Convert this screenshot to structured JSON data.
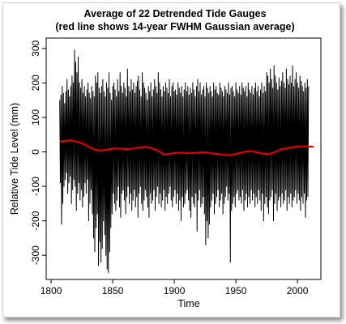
{
  "chart_data": {
    "type": "line",
    "title": "Average of 22 Detrended Tide Gauges",
    "subtitle": "(red line shows 14-year FWHM Gaussian average)",
    "xlabel": "Time",
    "ylabel": "Relative Tide Level (mm)",
    "xlim": [
      1796,
      2019
    ],
    "ylim": [
      -370,
      330
    ],
    "x_ticks": [
      1800,
      1850,
      1900,
      1950,
      2000
    ],
    "y_ticks": [
      -300,
      -200,
      -100,
      0,
      100,
      200,
      300
    ],
    "x_tick_labels": [
      "1800",
      "1850",
      "1900",
      "1950",
      "2000"
    ],
    "y_tick_labels": [
      "-300",
      "-200",
      "-100",
      "0",
      "100",
      "200",
      "300"
    ],
    "grid": false,
    "series": [
      {
        "color": "#000000",
        "note_points_are_yearly_extremes": true,
        "x": [
          1807,
          1808,
          1809,
          1810,
          1811,
          1812,
          1813,
          1814,
          1815,
          1816,
          1817,
          1818,
          1819,
          1820,
          1821,
          1822,
          1823,
          1824,
          1825,
          1826,
          1827,
          1828,
          1829,
          1830,
          1831,
          1832,
          1833,
          1834,
          1835,
          1836,
          1837,
          1838,
          1839,
          1840,
          1841,
          1842,
          1843,
          1844,
          1845,
          1846,
          1847,
          1848,
          1849,
          1850,
          1851,
          1852,
          1853,
          1854,
          1855,
          1856,
          1857,
          1858,
          1859,
          1860,
          1861,
          1862,
          1863,
          1864,
          1865,
          1866,
          1867,
          1868,
          1869,
          1870,
          1871,
          1872,
          1873,
          1874,
          1875,
          1876,
          1877,
          1878,
          1879,
          1880,
          1881,
          1882,
          1883,
          1884,
          1885,
          1886,
          1887,
          1888,
          1889,
          1890,
          1891,
          1892,
          1893,
          1894,
          1895,
          1896,
          1897,
          1898,
          1899,
          1900,
          1901,
          1902,
          1903,
          1904,
          1905,
          1906,
          1907,
          1908,
          1909,
          1910,
          1911,
          1912,
          1913,
          1914,
          1915,
          1916,
          1917,
          1918,
          1919,
          1920,
          1921,
          1922,
          1923,
          1924,
          1925,
          1926,
          1927,
          1928,
          1929,
          1930,
          1931,
          1932,
          1933,
          1934,
          1935,
          1936,
          1937,
          1938,
          1939,
          1940,
          1941,
          1942,
          1943,
          1944,
          1945,
          1946,
          1947,
          1948,
          1949,
          1950,
          1951,
          1952,
          1953,
          1954,
          1955,
          1956,
          1957,
          1958,
          1959,
          1960,
          1961,
          1962,
          1963,
          1964,
          1965,
          1966,
          1967,
          1968,
          1969,
          1970,
          1971,
          1972,
          1973,
          1974,
          1975,
          1976,
          1977,
          1978,
          1979,
          1980,
          1981,
          1982,
          1983,
          1984,
          1985,
          1986,
          1987,
          1988,
          1989,
          1990,
          1991,
          1992,
          1993,
          1994,
          1995,
          1996,
          1997,
          1998,
          1999,
          2000,
          2001,
          2002,
          2003,
          2004,
          2005,
          2006,
          2007,
          2008,
          2009,
          2010,
          2011,
          2012,
          2013
        ],
        "y_max": [
          150,
          165,
          190,
          170,
          140,
          175,
          210,
          180,
          160,
          190,
          220,
          200,
          295,
          260,
          230,
          275,
          200,
          185,
          210,
          170,
          190,
          160,
          180,
          200,
          170,
          155,
          190,
          175,
          160,
          220,
          200,
          230,
          185,
          170,
          190,
          210,
          175,
          160,
          200,
          185,
          230,
          170,
          150,
          190,
          200,
          180,
          160,
          210,
          175,
          230,
          190,
          170,
          200,
          185,
          160,
          240,
          190,
          175,
          210,
          180,
          200,
          170,
          190,
          205,
          220,
          180,
          160,
          230,
          200,
          185,
          170,
          150,
          190,
          175,
          200,
          160,
          180,
          210,
          190,
          170,
          230,
          200,
          180,
          160,
          190,
          175,
          200,
          185,
          170,
          210,
          160,
          190,
          200,
          175,
          180,
          165,
          200,
          185,
          170,
          190,
          160,
          180,
          200,
          175,
          190,
          165,
          185,
          170,
          200,
          180,
          160,
          190,
          210,
          175,
          200,
          165,
          180,
          190,
          160,
          200,
          185,
          170,
          190,
          175,
          160,
          200,
          180,
          190,
          170,
          165,
          200,
          185,
          175,
          160,
          190,
          180,
          170,
          200,
          165,
          185,
          190,
          175,
          160,
          200,
          180,
          170,
          190,
          165,
          200,
          185,
          175,
          190,
          160,
          200,
          180,
          170,
          190,
          165,
          185,
          200,
          175,
          190,
          160,
          180,
          200,
          170,
          190,
          175,
          230,
          220,
          200,
          240,
          210,
          185,
          250,
          220,
          200,
          180,
          215,
          190,
          205,
          230,
          200,
          185,
          240,
          210,
          195,
          220,
          200,
          250,
          190,
          210,
          230,
          200,
          185,
          220,
          205,
          190,
          175,
          200,
          185,
          210,
          190,
          175,
          200,
          220,
          180
        ],
        "y_min": [
          -90,
          -210,
          -150,
          -100,
          -80,
          -60,
          -120,
          -90,
          -70,
          -150,
          -110,
          -80,
          -100,
          -170,
          -120,
          -90,
          -140,
          -110,
          -160,
          -130,
          -90,
          -120,
          -80,
          -200,
          -150,
          -110,
          -180,
          -250,
          -290,
          -220,
          -180,
          -330,
          -260,
          -320,
          -280,
          -200,
          -240,
          -300,
          -340,
          -350,
          -290,
          -220,
          -180,
          -120,
          -150,
          -170,
          -140,
          -100,
          -160,
          -190,
          -120,
          -110,
          -140,
          -180,
          -130,
          -100,
          -150,
          -120,
          -170,
          -140,
          -110,
          -160,
          -130,
          -190,
          -120,
          -100,
          -150,
          -170,
          -140,
          -110,
          -130,
          -160,
          -190,
          -120,
          -150,
          -140,
          -110,
          -170,
          -130,
          -100,
          -150,
          -120,
          -160,
          -140,
          -110,
          -170,
          -130,
          -150,
          -120,
          -100,
          -140,
          -160,
          -130,
          -110,
          -150,
          -120,
          -170,
          -140,
          -200,
          -130,
          -160,
          -150,
          -120,
          -110,
          -140,
          -170,
          -190,
          -130,
          -150,
          -160,
          -120,
          -230,
          -140,
          -110,
          -160,
          -150,
          -130,
          -180,
          -270,
          -200,
          -250,
          -210,
          -160,
          -140,
          -120,
          -180,
          -150,
          -130,
          -110,
          -160,
          -140,
          -120,
          -180,
          -150,
          -130,
          -100,
          -140,
          -120,
          -320,
          -170,
          -150,
          -130,
          -160,
          -120,
          -110,
          -140,
          -130,
          -150,
          -110,
          -170,
          -140,
          -120,
          -160,
          -130,
          -150,
          -110,
          -140,
          -120,
          -160,
          -130,
          -150,
          -110,
          -140,
          -170,
          -120,
          -200,
          -150,
          -130,
          -160,
          -180,
          -140,
          -130,
          -110,
          -200,
          -150,
          -120,
          -170,
          -140,
          -130,
          -160,
          -120,
          -150,
          -140,
          -110,
          -170,
          -130,
          -150,
          -120,
          -160,
          -140,
          -130,
          -110,
          -150,
          -120,
          -140,
          -170,
          -130,
          -150,
          -120,
          -190,
          -140,
          -130
        ]
      },
      {
        "color": "#e00000",
        "x": [
          1807,
          1812,
          1817,
          1822,
          1827,
          1832,
          1837,
          1842,
          1847,
          1852,
          1857,
          1862,
          1867,
          1872,
          1877,
          1882,
          1887,
          1892,
          1897,
          1902,
          1907,
          1912,
          1917,
          1922,
          1927,
          1932,
          1937,
          1942,
          1947,
          1952,
          1957,
          1962,
          1967,
          1972,
          1977,
          1982,
          1987,
          1992,
          1997,
          2002,
          2007,
          2013
        ],
        "y": [
          30,
          32,
          33,
          28,
          22,
          12,
          5,
          4,
          8,
          10,
          9,
          8,
          10,
          13,
          15,
          10,
          3,
          -8,
          -5,
          -3,
          -2,
          -4,
          -3,
          -1,
          -2,
          -5,
          -7,
          -9,
          -9,
          -4,
          0,
          2,
          -1,
          -5,
          -6,
          0,
          8,
          10,
          14,
          16,
          16,
          15
        ]
      }
    ]
  }
}
